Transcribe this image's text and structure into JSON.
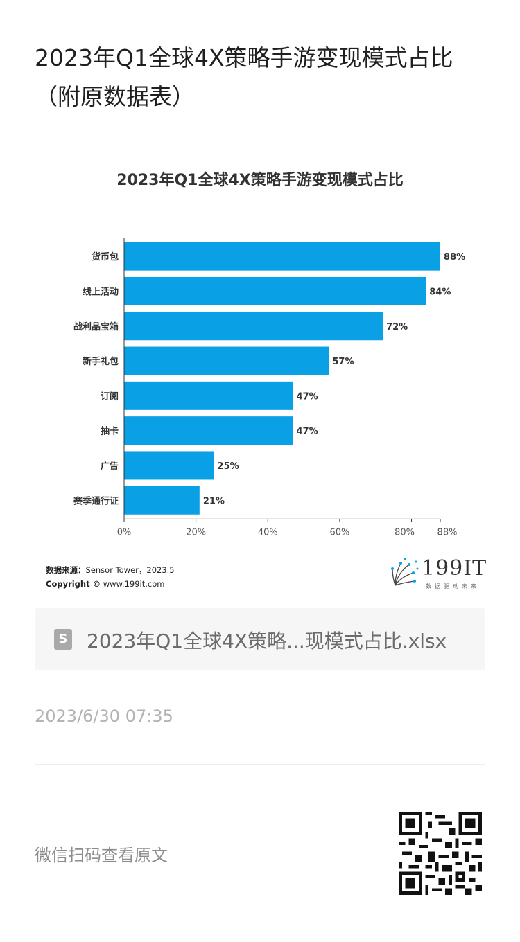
{
  "article": {
    "title_line1": "2023年Q1全球4X策略手游变现模式占比",
    "title_line2": "（附原数据表）"
  },
  "chart_data": {
    "type": "bar",
    "orientation": "horizontal",
    "title": "2023年Q1全球4X策略手游变现模式占比",
    "categories": [
      "货币包",
      "线上活动",
      "战利品宝箱",
      "新手礼包",
      "订阅",
      "抽卡",
      "广告",
      "赛季通行证"
    ],
    "values": [
      88,
      84,
      72,
      57,
      47,
      47,
      25,
      21
    ],
    "value_labels": [
      "88%",
      "84%",
      "72%",
      "57%",
      "47%",
      "47%",
      "25%",
      "21%"
    ],
    "xlim": [
      0,
      88
    ],
    "ticks": [
      0,
      20,
      40,
      60,
      80,
      88
    ],
    "tick_labels": [
      "0%",
      "20%",
      "40%",
      "60%",
      "80%",
      "88%"
    ],
    "bar_color": "#0aa0e6",
    "grid": false
  },
  "source": {
    "label": "数据来源：",
    "text": "Sensor Tower，2023.5",
    "copyright_label": "Copyright ©",
    "copyright_text": "www.199it.com"
  },
  "logo": {
    "text": "199IT",
    "sub": "数据驱动未来"
  },
  "file": {
    "icon": "document-icon",
    "icon_glyph": "S",
    "name": "2023年Q1全球4X策略...现模式占比.xlsx"
  },
  "timestamp": "2023/6/30 07:35",
  "scan_text": "微信扫码查看原文"
}
